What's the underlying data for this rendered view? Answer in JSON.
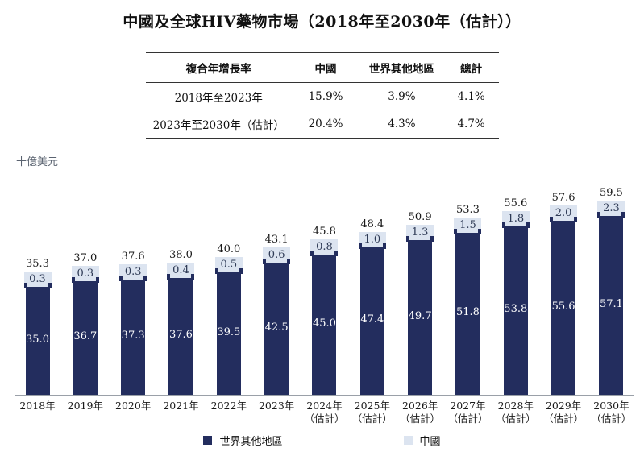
{
  "title": "中國及全球HIV藥物市場（2018年至2030年（估計））",
  "table": {
    "headers": [
      "複合年增長率",
      "中國",
      "世界其他地區",
      "總計"
    ],
    "rows": [
      {
        "label": "2018年至2023年",
        "china": "15.9%",
        "row": "3.9%",
        "total": "4.1%"
      },
      {
        "label": "2023年至2030年（估計）",
        "china": "20.4%",
        "row": "4.3%",
        "total": "4.7%"
      }
    ]
  },
  "y_axis_label": "十億美元",
  "chart_data": {
    "type": "bar",
    "stacked": true,
    "title": "中國及全球HIV藥物市場（2018年至2030年（估計））",
    "ylabel": "十億美元",
    "unit": "十億美元",
    "grid": false,
    "legend_position": "bottom",
    "categories": [
      {
        "year": "2018年",
        "note": ""
      },
      {
        "year": "2019年",
        "note": ""
      },
      {
        "year": "2020年",
        "note": ""
      },
      {
        "year": "2021年",
        "note": ""
      },
      {
        "year": "2022年",
        "note": ""
      },
      {
        "year": "2023年",
        "note": ""
      },
      {
        "year": "2024年",
        "note": "（估計）"
      },
      {
        "year": "2025年",
        "note": "（估計）"
      },
      {
        "year": "2026年",
        "note": "（估計）"
      },
      {
        "year": "2027年",
        "note": "（估計）"
      },
      {
        "year": "2028年",
        "note": "（估計）"
      },
      {
        "year": "2029年",
        "note": "（估計）"
      },
      {
        "year": "2030年",
        "note": "（估計）"
      }
    ],
    "series": [
      {
        "name": "世界其他地區",
        "color": "#232d5e",
        "values": [
          35.0,
          36.7,
          37.3,
          37.6,
          39.5,
          42.5,
          45.0,
          47.4,
          49.7,
          51.8,
          53.8,
          55.6,
          57.1
        ]
      },
      {
        "name": "中國",
        "color": "#dce4f0",
        "values": [
          0.3,
          0.3,
          0.3,
          0.4,
          0.5,
          0.6,
          0.8,
          1.0,
          1.3,
          1.5,
          1.8,
          2.0,
          2.3
        ]
      }
    ],
    "totals": [
      35.3,
      37.0,
      37.6,
      38.0,
      40.0,
      43.1,
      45.8,
      48.4,
      50.9,
      53.3,
      55.6,
      57.6,
      59.5
    ]
  },
  "legend": {
    "items": [
      {
        "label": "世界其他地區",
        "color": "#232d5e"
      },
      {
        "label": "中國",
        "color": "#dce4f0"
      }
    ]
  },
  "colors": {
    "rest_of_world": "#232d5e",
    "china": "#dce4f0",
    "axis_line": "#9aa0a8"
  }
}
